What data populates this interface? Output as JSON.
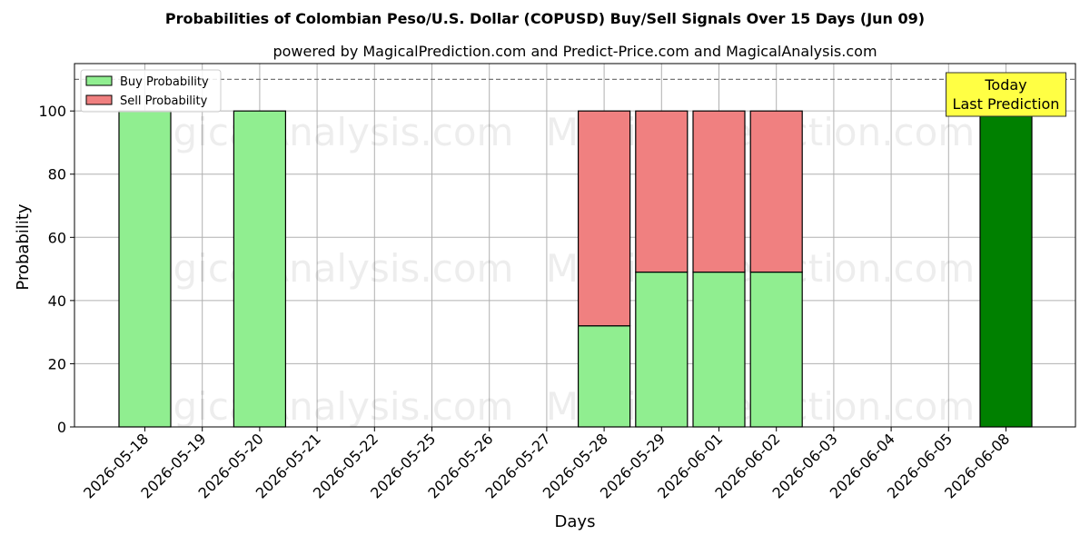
{
  "chart_data": {
    "type": "bar",
    "stacked": true,
    "title": "Probabilities of Colombian Peso/U.S. Dollar (COPUSD) Buy/Sell Signals Over 15 Days (Jun 09)",
    "subtitle": "powered by MagicalPrediction.com and Predict-Price.com and MagicalAnalysis.com",
    "xlabel": "Days",
    "ylabel": "Probability",
    "ylim": [
      0,
      115
    ],
    "yticks": [
      0,
      20,
      40,
      60,
      80,
      100
    ],
    "grid": true,
    "legend_position": "top-left",
    "reference_line": 110,
    "categories": [
      "2026-05-18",
      "2026-05-19",
      "2026-05-20",
      "2026-05-21",
      "2026-05-22",
      "2026-05-25",
      "2026-05-26",
      "2026-05-27",
      "2026-05-28",
      "2026-05-29",
      "2026-06-01",
      "2026-06-02",
      "2026-06-03",
      "2026-06-04",
      "2026-06-05",
      "2026-06-08"
    ],
    "series": [
      {
        "name": "Buy Probability",
        "color": "#90ee90",
        "values": [
          100,
          0,
          100,
          0,
          0,
          0,
          0,
          0,
          32,
          49,
          49,
          49,
          0,
          0,
          0,
          100
        ]
      },
      {
        "name": "Sell Probability",
        "color": "#f08080",
        "values": [
          0,
          0,
          0,
          0,
          0,
          0,
          0,
          0,
          68,
          51,
          51,
          51,
          0,
          0,
          0,
          0
        ]
      }
    ],
    "highlight": {
      "category": "2026-06-08",
      "color": "#008000"
    },
    "annotation": {
      "lines": [
        "Today",
        "Last Prediction"
      ],
      "background": "#ffff44"
    },
    "watermarks": [
      "MagicalAnalysis.com",
      "MagicalPrediction.com"
    ]
  }
}
